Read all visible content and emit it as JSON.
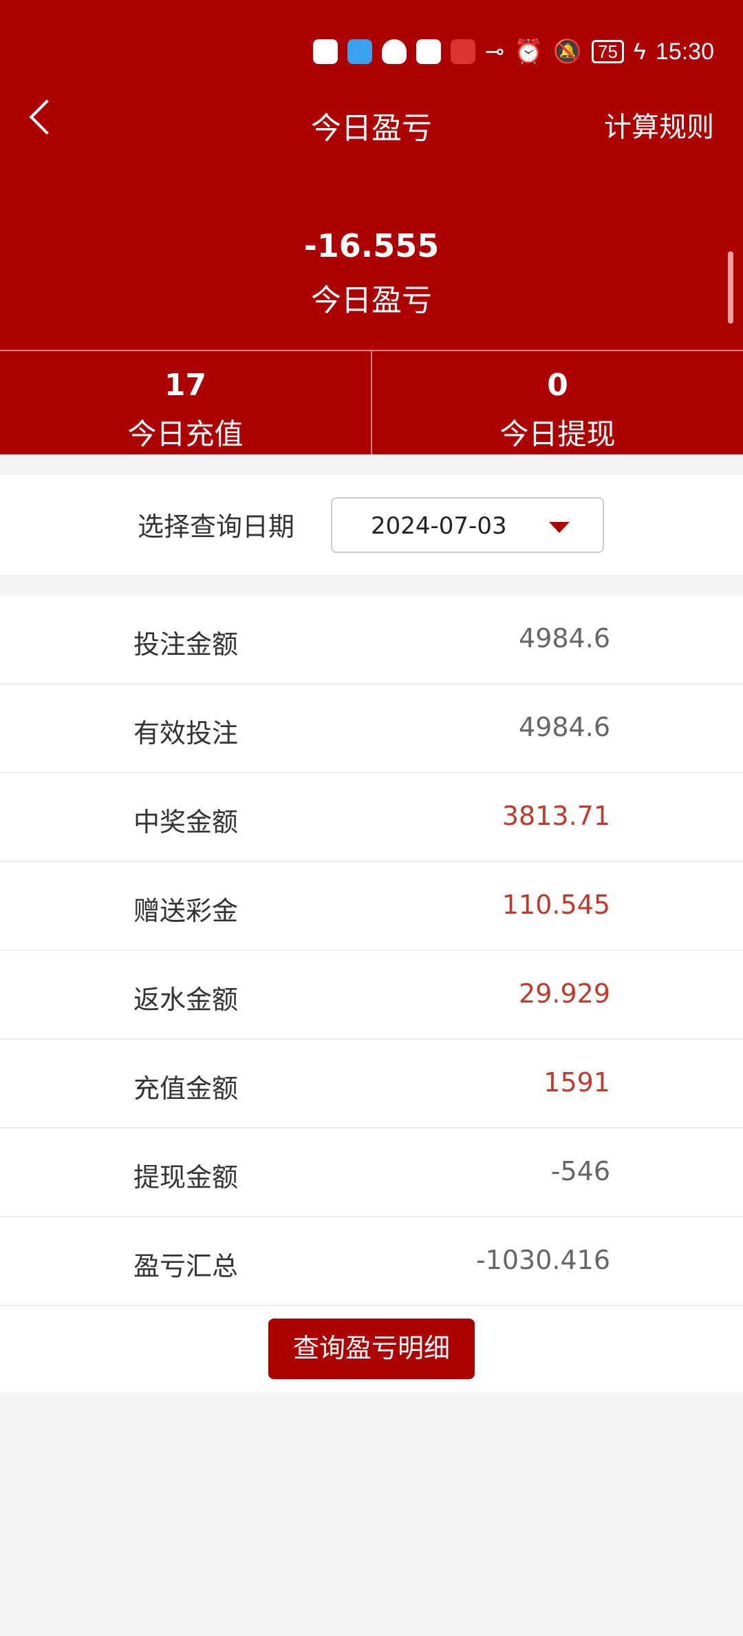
{
  "status_bar": {
    "time": "15:30",
    "battery": "75",
    "icons": [
      "hd1-icon",
      "hd2-icon",
      "5g-signal-icon",
      "4g-signal-icon",
      "rocket-app-icon",
      "honor-bag-app-icon",
      "qq-icon",
      "honor-diamond-app-icon",
      "red-app-icon",
      "key-icon",
      "alarm-icon",
      "mute-bell-icon",
      "charging-icon"
    ]
  },
  "nav": {
    "title": "今日盈亏",
    "rules": "计算规则"
  },
  "summary": {
    "value": "-16.555",
    "label": "今日盈亏"
  },
  "stats": [
    {
      "value": "17",
      "label": "今日充值"
    },
    {
      "value": "0",
      "label": "今日提现"
    }
  ],
  "date": {
    "label": "选择查询日期",
    "value": "2024-07-03"
  },
  "rows": [
    {
      "label": "投注金额",
      "value": "4984.6",
      "color": "#666666"
    },
    {
      "label": "有效投注",
      "value": "4984.6",
      "color": "#666666"
    },
    {
      "label": "中奖金额",
      "value": "3813.71",
      "color": "#c0392b"
    },
    {
      "label": "赠送彩金",
      "value": "110.545",
      "color": "#c0392b"
    },
    {
      "label": "返水金额",
      "value": "29.929",
      "color": "#c0392b"
    },
    {
      "label": "充值金额",
      "value": "1591",
      "color": "#c0392b"
    },
    {
      "label": "提现金额",
      "value": "-546",
      "color": "#666666"
    },
    {
      "label": "盈亏汇总",
      "value": "-1030.416",
      "color": "#666666"
    }
  ],
  "button": {
    "label": "查询盈亏明细"
  },
  "colors": {
    "brand": "#ad0000"
  }
}
